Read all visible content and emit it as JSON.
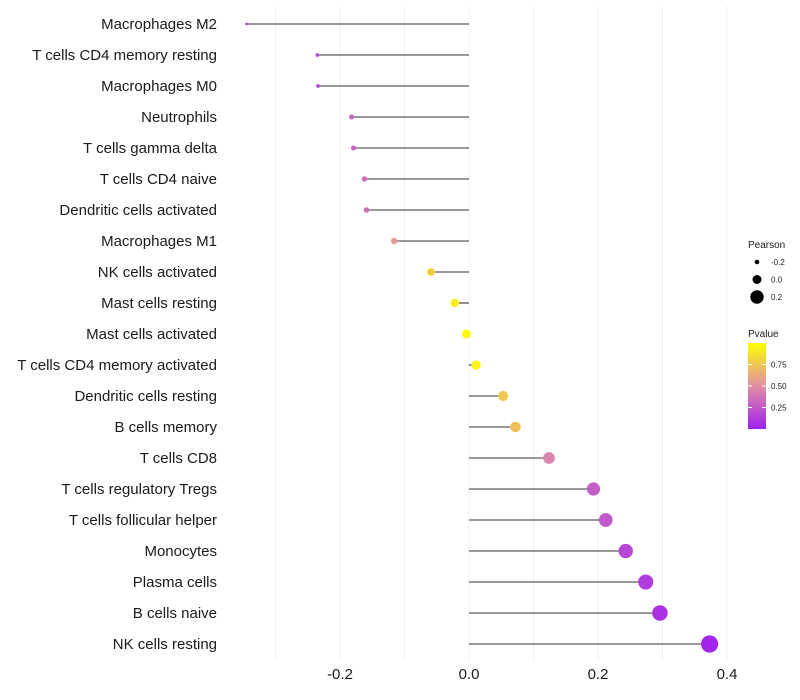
{
  "chart_data": {
    "type": "lollipop",
    "title": "",
    "xlabel": "",
    "ylabel": "",
    "xlim": [
      -0.345,
      0.4
    ],
    "x_ticks": [
      -0.2,
      0.0,
      0.2,
      0.4
    ],
    "x_tick_labels": [
      "-0.2",
      "0.0",
      "0.2",
      "0.4"
    ],
    "grid": true,
    "categories": [
      "Macrophages M2",
      "T cells CD4 memory resting",
      "Macrophages M0",
      "Neutrophils",
      "T cells gamma delta",
      "T cells CD4 naive",
      "Dendritic cells activated",
      "Macrophages M1",
      "NK cells activated",
      "Mast cells resting",
      "Mast cells activated",
      "T cells CD4 memory activated",
      "Dendritic cells resting",
      "B cells memory",
      "T cells CD8",
      "T cells regulatory  Tregs ",
      "T cells follicular helper",
      "Monocytes",
      "Plasma cells",
      "B cells naive",
      "NK cells resting"
    ],
    "values": [
      -0.345,
      -0.235,
      -0.234,
      -0.182,
      -0.179,
      -0.162,
      -0.159,
      -0.116,
      -0.059,
      -0.022,
      -0.004,
      0.011,
      0.053,
      0.072,
      0.124,
      0.193,
      0.212,
      0.243,
      0.274,
      0.296,
      0.373
    ],
    "pvalues": [
      0.03,
      0.18,
      0.18,
      0.3,
      0.3,
      0.35,
      0.36,
      0.55,
      0.8,
      0.92,
      0.98,
      0.95,
      0.75,
      0.72,
      0.45,
      0.28,
      0.25,
      0.18,
      0.12,
      0.08,
      0.02
    ],
    "legend": {
      "position": "right",
      "size_title": "Pearson",
      "size_entries": [
        {
          "value": -0.2,
          "label": "-0.2"
        },
        {
          "value": 0.0,
          "label": "0.0"
        },
        {
          "value": 0.2,
          "label": "0.2"
        }
      ],
      "color_title": "Pvalue",
      "color_ticks": [
        {
          "value": 0.75,
          "label": "0.75"
        },
        {
          "value": 0.5,
          "label": "0.50"
        },
        {
          "value": 0.25,
          "label": "0.25"
        }
      ],
      "color_low": "#a020f0",
      "color_high": "#ffff00",
      "color_range": [
        0.0,
        1.0
      ]
    }
  }
}
